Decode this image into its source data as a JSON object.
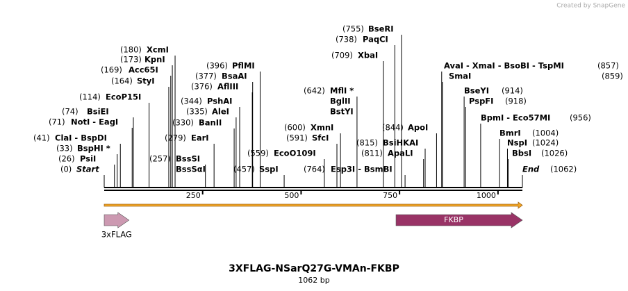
{
  "watermark": "Created by SnapGene",
  "title": "3XFLAG-NSarQ27G-VMAn-FKBP",
  "subtitle": "1062 bp",
  "length": 1062,
  "ruler_ticks": [
    250,
    500,
    750,
    1000
  ],
  "sites": [
    {
      "position": 0,
      "position_label": "(0)",
      "names": [
        "Start"
      ]
    },
    {
      "position": 26,
      "position_label": "(26)",
      "names": [
        "PsiI"
      ]
    },
    {
      "position": 33,
      "position_label": "(33)",
      "names": [
        "BspHI *"
      ]
    },
    {
      "position": 41,
      "position_label": "(41)",
      "names": [
        "ClaI  -  BspDI"
      ]
    },
    {
      "position": 71,
      "position_label": "(71)",
      "names": [
        "NotI  -  EagI"
      ]
    },
    {
      "position": 74,
      "position_label": "(74)",
      "names": [
        "BsiEI"
      ]
    },
    {
      "position": 114,
      "position_label": "(114)",
      "names": [
        "EcoP15I"
      ]
    },
    {
      "position": 164,
      "position_label": "(164)",
      "names": [
        "StyI"
      ]
    },
    {
      "position": 169,
      "position_label": "(169)",
      "names": [
        "Acc65I"
      ]
    },
    {
      "position": 173,
      "position_label": "(173)",
      "names": [
        "KpnI"
      ]
    },
    {
      "position": 180,
      "position_label": "(180)",
      "names": [
        "XcmI"
      ]
    },
    {
      "position": 257,
      "position_label": "(257)",
      "names": [
        "BssSI",
        "BssSαI"
      ]
    },
    {
      "position": 279,
      "position_label": "(279)",
      "names": [
        "EarI"
      ]
    },
    {
      "position": 330,
      "position_label": "(330)",
      "names": [
        "BanII"
      ]
    },
    {
      "position": 335,
      "position_label": "(335)",
      "names": [
        "AleI"
      ]
    },
    {
      "position": 344,
      "position_label": "(344)",
      "names": [
        "PshAI"
      ]
    },
    {
      "position": 376,
      "position_label": "(376)",
      "names": [
        "AflIII"
      ]
    },
    {
      "position": 377,
      "position_label": "(377)",
      "names": [
        "BsaAI"
      ]
    },
    {
      "position": 396,
      "position_label": "(396)",
      "names": [
        "PflMI"
      ]
    },
    {
      "position": 457,
      "position_label": "(457)",
      "names": [
        "SspI"
      ]
    },
    {
      "position": 559,
      "position_label": "(559)",
      "names": [
        "EcoO109I"
      ]
    },
    {
      "position": 591,
      "position_label": "(591)",
      "names": [
        "SfcI"
      ]
    },
    {
      "position": 600,
      "position_label": "(600)",
      "names": [
        "XmnI"
      ]
    },
    {
      "position": 642,
      "position_label": "(642)",
      "names": [
        "MflI *",
        "BglII",
        "BstYI"
      ]
    },
    {
      "position": 709,
      "position_label": "(709)",
      "names": [
        "XbaI"
      ]
    },
    {
      "position": 738,
      "position_label": "(738)",
      "names": [
        "PaqCI"
      ]
    },
    {
      "position": 755,
      "position_label": "(755)",
      "names": [
        "BseRI"
      ]
    },
    {
      "position": 764,
      "position_label": "(764)",
      "names": [
        "Esp3I  -  BsmBI"
      ]
    },
    {
      "position": 811,
      "position_label": "(811)",
      "names": [
        "ApaLI"
      ]
    },
    {
      "position": 815,
      "position_label": "(815)",
      "names": [
        "BsiHKAI"
      ]
    },
    {
      "position": 844,
      "position_label": "(844)",
      "names": [
        "ApoI"
      ]
    },
    {
      "position": 857,
      "position_label": "(857)",
      "names": [
        "AvaI  -  XmaI  -  BsoBI  -  TspMI"
      ]
    },
    {
      "position": 859,
      "position_label": "(859)",
      "names": [
        "SmaI"
      ]
    },
    {
      "position": 914,
      "position_label": "(914)",
      "names": [
        "BseYI"
      ]
    },
    {
      "position": 918,
      "position_label": "(918)",
      "names": [
        "PspFI"
      ]
    },
    {
      "position": 956,
      "position_label": "(956)",
      "names": [
        "BpmI  -  Eco57MI"
      ]
    },
    {
      "position": 1004,
      "position_label": "(1004)",
      "names": [
        "BmrI"
      ]
    },
    {
      "position": 1024,
      "position_label": "(1024)",
      "names": [
        "NspI"
      ]
    },
    {
      "position": 1026,
      "position_label": "(1026)",
      "names": [
        "BbsI"
      ]
    },
    {
      "position": 1062,
      "position_label": "(1062)",
      "names": [
        "End"
      ]
    }
  ],
  "orf": {
    "start": 0,
    "end": 1062,
    "color": "#f5a623"
  },
  "features": [
    {
      "name": "3xFLAG",
      "start": 0,
      "end": 63,
      "color": "#cc99b1",
      "label_below": true
    },
    {
      "name": "FKBP",
      "start": 741,
      "end": 1062,
      "color": "#993366",
      "label_below": false
    }
  ]
}
